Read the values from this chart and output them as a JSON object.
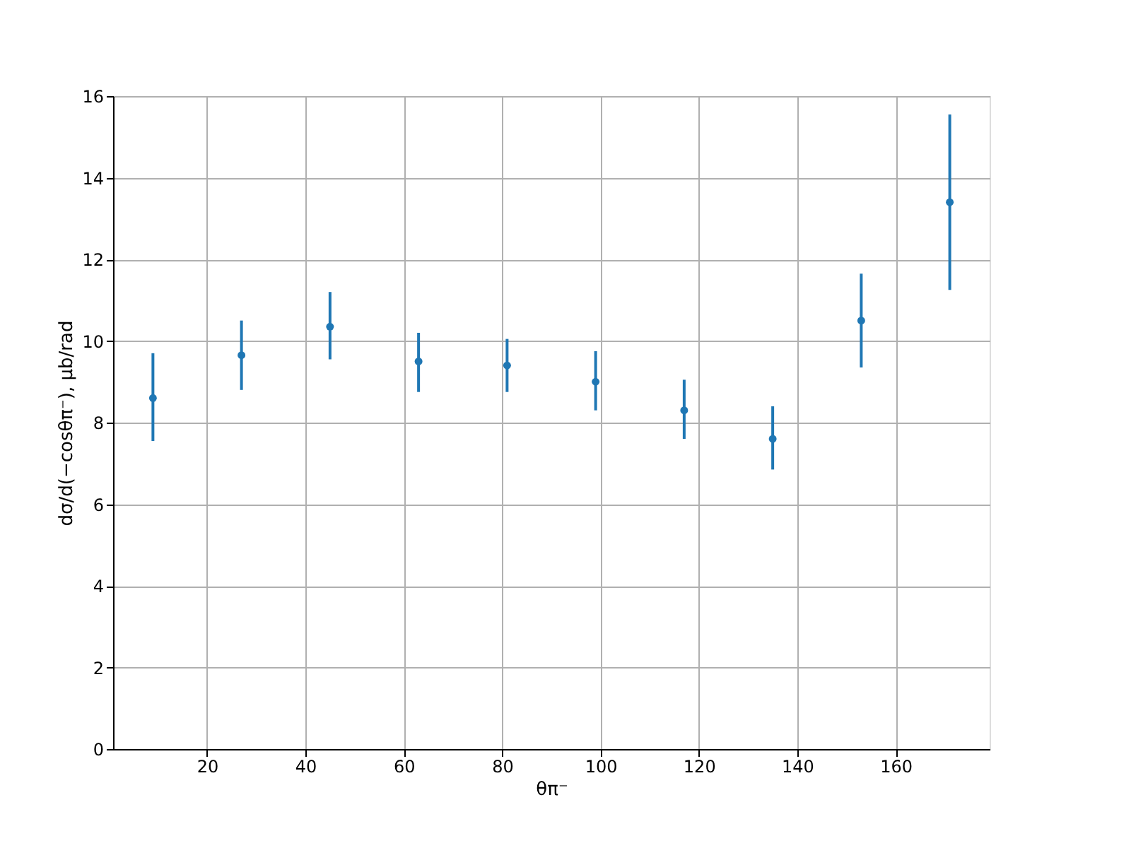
{
  "chart_data": {
    "type": "scatter",
    "xlabel": "θπ⁻",
    "ylabel": "dσ/d(−cosθπ⁻), μb/rad",
    "x": [
      9,
      27,
      45,
      63,
      81,
      99,
      117,
      135,
      153,
      171
    ],
    "series": [
      {
        "color": "#1f77b4",
        "values": [
          8.6,
          9.65,
          10.35,
          9.5,
          9.4,
          9.0,
          8.3,
          7.6,
          10.5,
          13.4
        ],
        "errors": [
          [
            7.55,
            9.7
          ],
          [
            8.8,
            10.5
          ],
          [
            9.55,
            11.2
          ],
          [
            8.75,
            10.2
          ],
          [
            8.75,
            10.05
          ],
          [
            8.3,
            9.75
          ],
          [
            7.6,
            9.05
          ],
          [
            6.85,
            8.4
          ],
          [
            9.35,
            11.65
          ],
          [
            11.25,
            15.55
          ]
        ]
      }
    ],
    "xlim": [
      0.9,
      179.1
    ],
    "ylim": [
      0,
      16
    ],
    "xticks": [
      20,
      40,
      60,
      80,
      100,
      120,
      140,
      160
    ],
    "yticks": [
      0,
      2,
      4,
      6,
      8,
      10,
      12,
      14,
      16
    ],
    "grid": true,
    "marker": "circle"
  }
}
